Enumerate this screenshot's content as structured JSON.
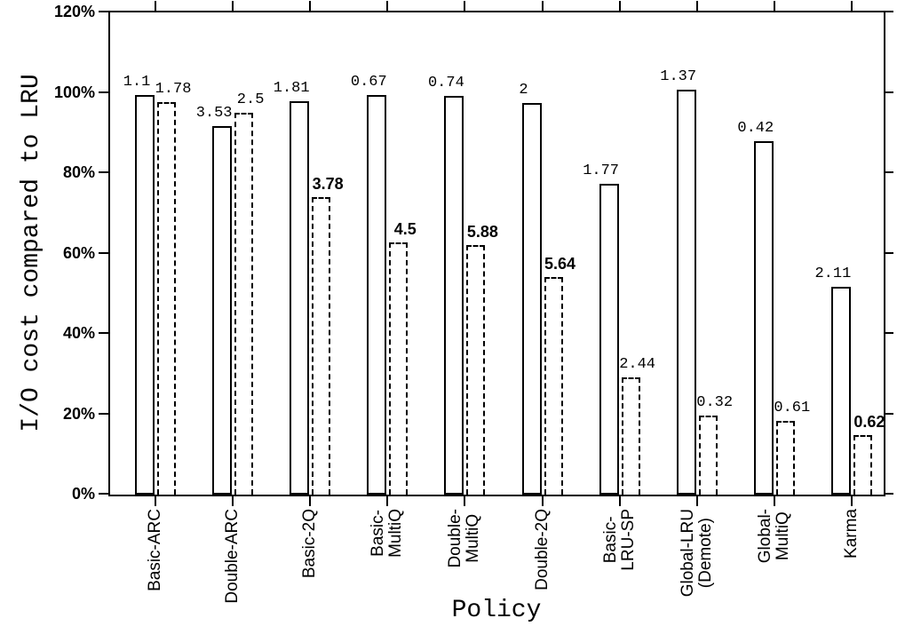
{
  "chart": {
    "y_axis_title": "I/O cost compared to LRU",
    "x_axis_title": "Policy",
    "y_ticks": [
      "0%",
      "20%",
      "40%",
      "60%",
      "80%",
      "100%",
      "120%"
    ]
  },
  "chart_data": {
    "type": "bar",
    "title": "",
    "xlabel": "Policy",
    "ylabel": "I/O cost compared to LRU",
    "ylim": [
      0,
      120
    ],
    "y_unit": "percent",
    "y_tick_step": 20,
    "grid": false,
    "legend_position": "none",
    "bar_colors": {
      "outline": "#000000",
      "fill": "#ffffff"
    },
    "categories": [
      "Basic-ARC",
      "Double-ARC",
      "Basic-2Q",
      "Basic-MultiQ",
      "Double-MultiQ",
      "Double-2Q",
      "Basic-LRU-SP",
      "Global-LRU (Demote)",
      "Global-MultiQ",
      "Karma"
    ],
    "category_display_lines": [
      [
        "Basic-ARC"
      ],
      [
        "Double-ARC"
      ],
      [
        "Basic-2Q"
      ],
      [
        "Basic-",
        "MultiQ"
      ],
      [
        "Double-",
        "MultiQ"
      ],
      [
        "Double-2Q"
      ],
      [
        "Basic-",
        "LRU-SP"
      ],
      [
        "Global-LRU",
        "(Demote)"
      ],
      [
        "Global-",
        "MultiQ"
      ],
      [
        "Karma"
      ]
    ],
    "series": [
      {
        "name": "solid-outline-bars",
        "style": "solid",
        "values_percent": [
          99.4,
          91.7,
          97.9,
          99.5,
          99.2,
          97.5,
          77.3,
          100.8,
          88.0,
          51.7
        ],
        "labels": [
          "1.1",
          "3.53",
          "1.81",
          "0.67",
          "0.74",
          "2",
          "1.77",
          "1.37",
          "0.42",
          "2.11"
        ],
        "labels_bold": [
          false,
          false,
          false,
          false,
          false,
          false,
          false,
          false,
          false,
          false
        ]
      },
      {
        "name": "dashed-outline-bars",
        "style": "dashed",
        "values_percent": [
          97.7,
          95.0,
          74.0,
          62.8,
          62.1,
          54.1,
          29.2,
          19.7,
          18.3,
          14.8
        ],
        "labels": [
          "1.78",
          "2.5",
          "3.78",
          "4.5",
          "5.88",
          "5.64",
          "2.44",
          "0.32",
          "0.61",
          "0.62"
        ],
        "labels_bold": [
          false,
          false,
          true,
          true,
          true,
          true,
          false,
          false,
          false,
          true
        ]
      }
    ]
  }
}
